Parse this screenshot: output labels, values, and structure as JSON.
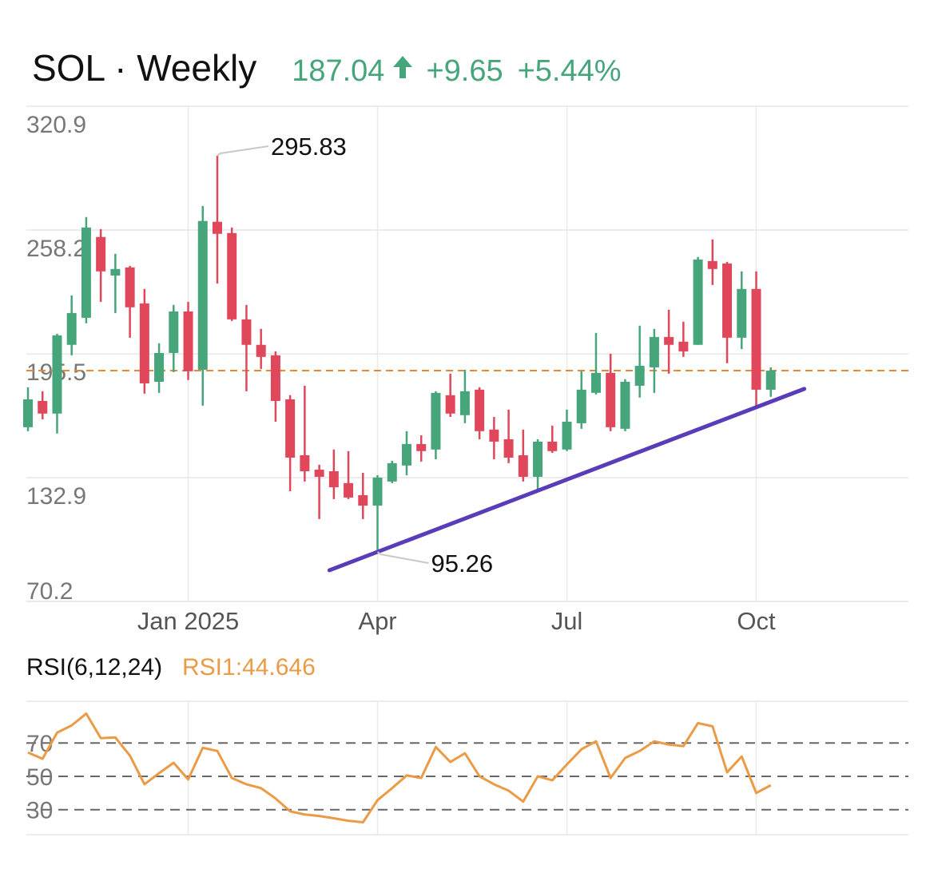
{
  "chart_data": [
    {
      "type": "candlestick",
      "title": "SOL · Weekly",
      "last_price": 187.04,
      "change": "+9.65",
      "change_pct": "+5.44%",
      "categories": [
        null,
        null,
        null,
        null,
        null,
        null,
        null,
        null,
        null,
        null,
        null,
        "Jan 2025",
        null,
        null,
        null,
        null,
        null,
        null,
        null,
        null,
        null,
        null,
        null,
        null,
        "Apr",
        null,
        null,
        null,
        null,
        null,
        null,
        null,
        null,
        null,
        null,
        null,
        null,
        "Jul",
        null,
        null,
        null,
        null,
        null,
        null,
        null,
        null,
        null,
        null,
        null,
        null,
        "Oct",
        null
      ],
      "open": [
        158.4,
        171.7,
        165.3,
        200.1,
        213.8,
        254.7,
        235.2,
        239.3,
        221.1,
        181.4,
        196.0,
        217.0,
        187.5,
        262.4,
        256.7,
        213.0,
        200.1,
        194.8,
        172.5,
        144.2,
        136.9,
        136.1,
        130.1,
        124.0,
        118.7,
        130.9,
        139.0,
        149.9,
        147.1,
        174.6,
        164.5,
        177.4,
        157.2,
        152.3,
        144.2,
        133.3,
        151.1,
        147.1,
        160.4,
        175.8,
        185.9,
        157.6,
        179.4,
        188.7,
        204.1,
        201.7,
        200.1,
        242.5,
        241.3,
        203.7,
        228.4,
        177.39
      ],
      "high": [
        178.6,
        176.6,
        205.7,
        225.1,
        264.8,
        258.7,
        246.2,
        240.1,
        228.4,
        200.9,
        220.3,
        221.9,
        270.4,
        295.83,
        259.5,
        220.3,
        208.2,
        196.8,
        174.6,
        179.4,
        139.4,
        147.1,
        146.3,
        135.3,
        134.1,
        141.4,
        156.4,
        154.3,
        176.6,
        185.5,
        187.5,
        178.6,
        163.6,
        167.3,
        157.2,
        152.3,
        159.2,
        167.3,
        186.7,
        206.1,
        195.6,
        182.7,
        209.8,
        208.2,
        217.9,
        211.8,
        244.6,
        253.5,
        242.1,
        237.3,
        237.3,
        188.7
      ],
      "low": [
        156.4,
        162.4,
        155.2,
        194.8,
        211.0,
        221.9,
        216.2,
        203.7,
        175.4,
        175.8,
        186.3,
        182.3,
        169.3,
        231.2,
        212.2,
        176.6,
        187.9,
        161.2,
        126.0,
        130.9,
        111.9,
        122.0,
        122.0,
        111.9,
        95.26,
        130.1,
        134.1,
        141.0,
        142.2,
        163.6,
        160.4,
        152.3,
        142.2,
        140.2,
        130.9,
        127.2,
        145.4,
        146.3,
        157.6,
        175.0,
        156.4,
        156.4,
        173.4,
        175.8,
        185.5,
        194.0,
        200.1,
        230.4,
        190.8,
        198.0,
        168.5,
        173.8
      ],
      "close": [
        172.5,
        165.3,
        204.9,
        216.2,
        259.5,
        237.3,
        238.5,
        219.1,
        180.6,
        196.0,
        217.0,
        186.7,
        262.8,
        256.3,
        213.0,
        200.1,
        194.0,
        171.7,
        143.0,
        136.1,
        133.3,
        128.0,
        122.8,
        118.7,
        132.9,
        140.2,
        149.9,
        146.3,
        175.8,
        165.3,
        176.6,
        156.4,
        151.1,
        143.0,
        133.3,
        151.1,
        146.3,
        161.2,
        177.4,
        185.9,
        158.4,
        181.4,
        189.5,
        204.1,
        200.1,
        196.8,
        243.3,
        238.5,
        203.7,
        228.4,
        177.4,
        187.04
      ],
      "up_color": "#46a57a",
      "down_color": "#e0475a",
      "price_line_color": "#e8863a",
      "ylim": [
        70.2,
        320.9
      ],
      "yticks": [
        70.2,
        132.9,
        195.5,
        258.2,
        320.9
      ],
      "grid": true,
      "annotations": [
        295.83,
        95.26
      ],
      "trendline": {
        "color": "#5b3cb8",
        "x": [
          20.7,
          53.3
        ],
        "y": [
          86.0,
          177.8
        ]
      }
    },
    {
      "type": "line",
      "title": "RSI(6,12,24)",
      "series": [
        {
          "name": "RSI1:44.646",
          "color": "#eb9a45",
          "values": [
            64.3,
            60.5,
            76.2,
            80.5,
            87.6,
            72.9,
            73.3,
            62.4,
            45.2,
            51.9,
            58.1,
            48.1,
            67.1,
            65.2,
            49.0,
            45.2,
            42.9,
            36.7,
            29.0,
            27.1,
            26.2,
            24.8,
            23.3,
            22.4,
            35.7,
            42.9,
            50.5,
            49.0,
            67.6,
            58.6,
            63.8,
            50.0,
            45.2,
            41.4,
            34.8,
            50.0,
            47.6,
            57.1,
            66.2,
            71.0,
            49.0,
            61.0,
            65.2,
            71.0,
            69.0,
            68.1,
            81.9,
            80.0,
            52.4,
            61.9,
            40.0,
            44.646
          ]
        }
      ],
      "ylim": [
        15,
        95
      ],
      "yticks": [
        30,
        50,
        70
      ],
      "grid": true
    }
  ]
}
